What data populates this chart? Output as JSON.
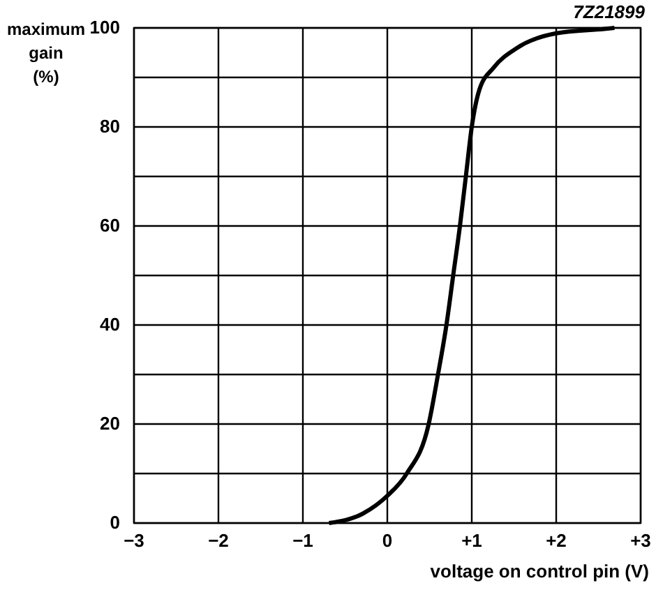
{
  "chart_data": {
    "type": "line",
    "xlabel": "voltage on control pin (V)",
    "ylabel": "maximum\ngain\n(%)",
    "annotations": [
      "7Z21899"
    ],
    "xlim": [
      -3,
      3
    ],
    "ylim": [
      0,
      100
    ],
    "xticks": [
      {
        "value": -3,
        "label": "−3"
      },
      {
        "value": -2,
        "label": "−2"
      },
      {
        "value": -1,
        "label": "−1"
      },
      0,
      {
        "value": 1,
        "label": "+1"
      },
      {
        "value": 2,
        "label": "+2"
      },
      {
        "value": 3,
        "label": "+3"
      }
    ],
    "yticks": [
      0,
      {
        "value": 10,
        "label": null
      },
      20,
      {
        "value": 30,
        "label": null
      },
      40,
      {
        "value": 50,
        "label": null
      },
      60,
      {
        "value": 70,
        "label": null
      },
      80,
      {
        "value": 90,
        "label": null
      },
      100
    ],
    "grid": true,
    "marker": "none",
    "line_style": "solid",
    "series": [
      {
        "color": "#000000",
        "x": [
          -0.69,
          -0.29,
          0,
          0.23,
          0.49,
          0.6,
          0.7,
          0.78,
          0.86,
          0.93,
          1.0,
          1.09,
          1.26,
          1.54,
          2.0,
          2.57,
          2.69
        ],
        "values": [
          0,
          1.9,
          5.5,
          10,
          20,
          30,
          40,
          50,
          60,
          70,
          80,
          87.5,
          92,
          96,
          98.9,
          99.8,
          100
        ]
      }
    ]
  }
}
